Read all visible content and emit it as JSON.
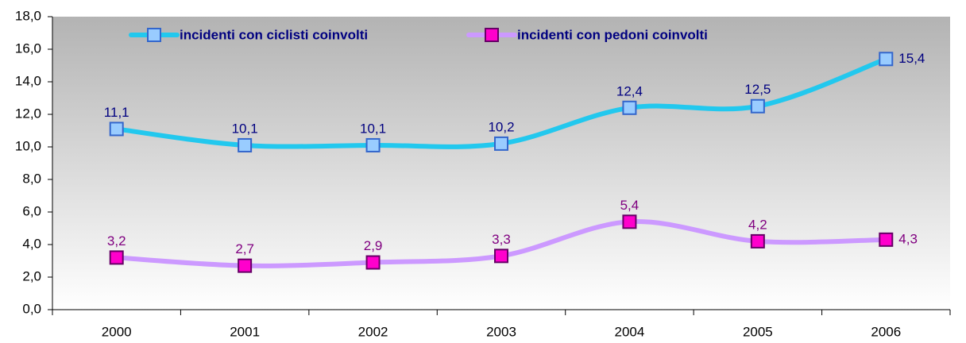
{
  "chart_data": {
    "type": "line",
    "categories": [
      "2000",
      "2001",
      "2002",
      "2003",
      "2004",
      "2005",
      "2006"
    ],
    "series": [
      {
        "name": "incidenti con ciclisti coinvolti",
        "color": "#22c8ee",
        "marker_fill": "#99ccff",
        "marker_stroke": "#3366cc",
        "label_color": "#000080",
        "values": [
          11.1,
          10.1,
          10.1,
          10.2,
          12.4,
          12.5,
          15.4
        ],
        "value_labels": [
          "11,1",
          "10,1",
          "10,1",
          "10,2",
          "12,4",
          "12,5",
          "15,4"
        ]
      },
      {
        "name": "incidenti con pedoni coinvolti",
        "color": "#cc99ff",
        "marker_fill": "#ff00cc",
        "marker_stroke": "#660066",
        "label_color": "#800080",
        "values": [
          3.2,
          2.7,
          2.9,
          3.3,
          5.4,
          4.2,
          4.3
        ],
        "value_labels": [
          "3,2",
          "2,7",
          "2,9",
          "3,3",
          "5,4",
          "4,2",
          "4,3"
        ]
      }
    ],
    "ylim": [
      0,
      18
    ],
    "yticks": [
      {
        "value": 0,
        "label": "0,0"
      },
      {
        "value": 2,
        "label": "2,0"
      },
      {
        "value": 4,
        "label": "4,0"
      },
      {
        "value": 6,
        "label": "6,0"
      },
      {
        "value": 8,
        "label": "8,0"
      },
      {
        "value": 10,
        "label": "10,0"
      },
      {
        "value": 12,
        "label": "12,0"
      },
      {
        "value": 14,
        "label": "14,0"
      },
      {
        "value": 16,
        "label": "16,0"
      },
      {
        "value": 18,
        "label": "18,0"
      }
    ],
    "grid": false,
    "legend": "top",
    "smooth": true
  }
}
